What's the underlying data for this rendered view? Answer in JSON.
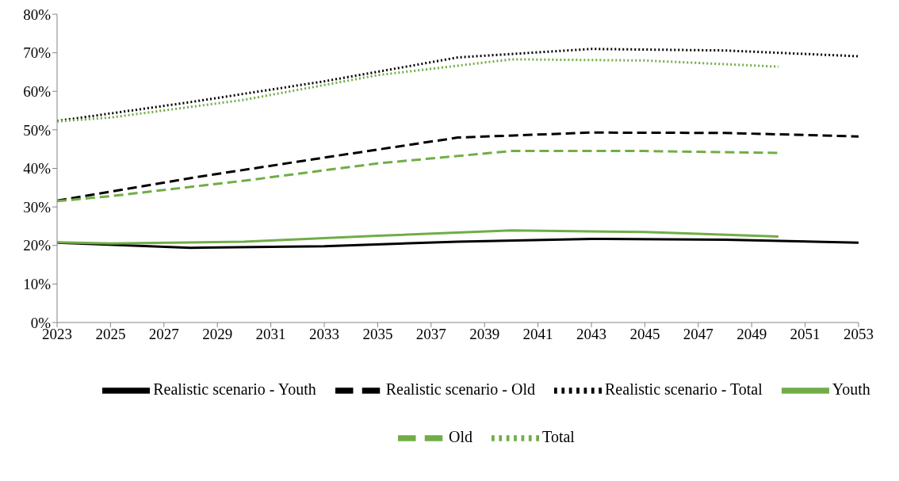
{
  "chart_data": {
    "type": "line",
    "xlim": [
      2023,
      2053
    ],
    "xticks": [
      2023,
      2025,
      2027,
      2029,
      2031,
      2033,
      2035,
      2037,
      2039,
      2041,
      2043,
      2045,
      2047,
      2049,
      2051,
      2053
    ],
    "ylim": [
      0,
      80
    ],
    "yticks": [
      {
        "value": 0,
        "label": "0%"
      },
      {
        "value": 10,
        "label": "10%"
      },
      {
        "value": 20,
        "label": "20%"
      },
      {
        "value": 30,
        "label": "30%"
      },
      {
        "value": 40,
        "label": "40%"
      },
      {
        "value": 50,
        "label": "50%"
      },
      {
        "value": 60,
        "label": "60%"
      },
      {
        "value": 70,
        "label": "70%"
      },
      {
        "value": 80,
        "label": "80%"
      }
    ],
    "grid": false,
    "legend": "bottom",
    "marker": "none",
    "series": [
      {
        "name": "Realistic scenario - Youth",
        "color": "#000000",
        "line_style": "solid",
        "x": [
          2023,
          2028,
          2033,
          2038,
          2043,
          2048,
          2053
        ],
        "values": [
          20.7,
          19.4,
          19.8,
          21.0,
          21.7,
          21.5,
          20.7
        ]
      },
      {
        "name": "Realistic scenario - Old",
        "color": "#000000",
        "line_style": "dashed",
        "x": [
          2023,
          2028,
          2033,
          2038,
          2043,
          2048,
          2053
        ],
        "values": [
          31.6,
          37.5,
          42.8,
          48.0,
          49.3,
          49.2,
          48.3
        ]
      },
      {
        "name": "Realistic scenario - Total",
        "color": "#000000",
        "line_style": "dotted",
        "x": [
          2023,
          2028,
          2033,
          2038,
          2043,
          2048,
          2053
        ],
        "values": [
          52.3,
          57.2,
          62.6,
          68.8,
          71.0,
          70.6,
          69.1
        ]
      },
      {
        "name": "Youth",
        "color": "#70ad47",
        "line_style": "solid",
        "x": [
          2023,
          2025,
          2030,
          2035,
          2040,
          2045,
          2050
        ],
        "values": [
          20.8,
          20.5,
          21.0,
          22.5,
          23.9,
          23.5,
          22.3
        ]
      },
      {
        "name": "Old",
        "color": "#70ad47",
        "line_style": "dashed",
        "x": [
          2023,
          2025,
          2030,
          2035,
          2040,
          2045,
          2050
        ],
        "values": [
          31.5,
          32.8,
          36.8,
          41.3,
          44.5,
          44.5,
          44.0
        ]
      },
      {
        "name": "Total",
        "color": "#70ad47",
        "line_style": "dotted",
        "x": [
          2023,
          2025,
          2030,
          2035,
          2040,
          2045,
          2050
        ],
        "values": [
          52.2,
          53.2,
          57.8,
          64.2,
          68.3,
          68.0,
          66.4
        ]
      }
    ]
  }
}
